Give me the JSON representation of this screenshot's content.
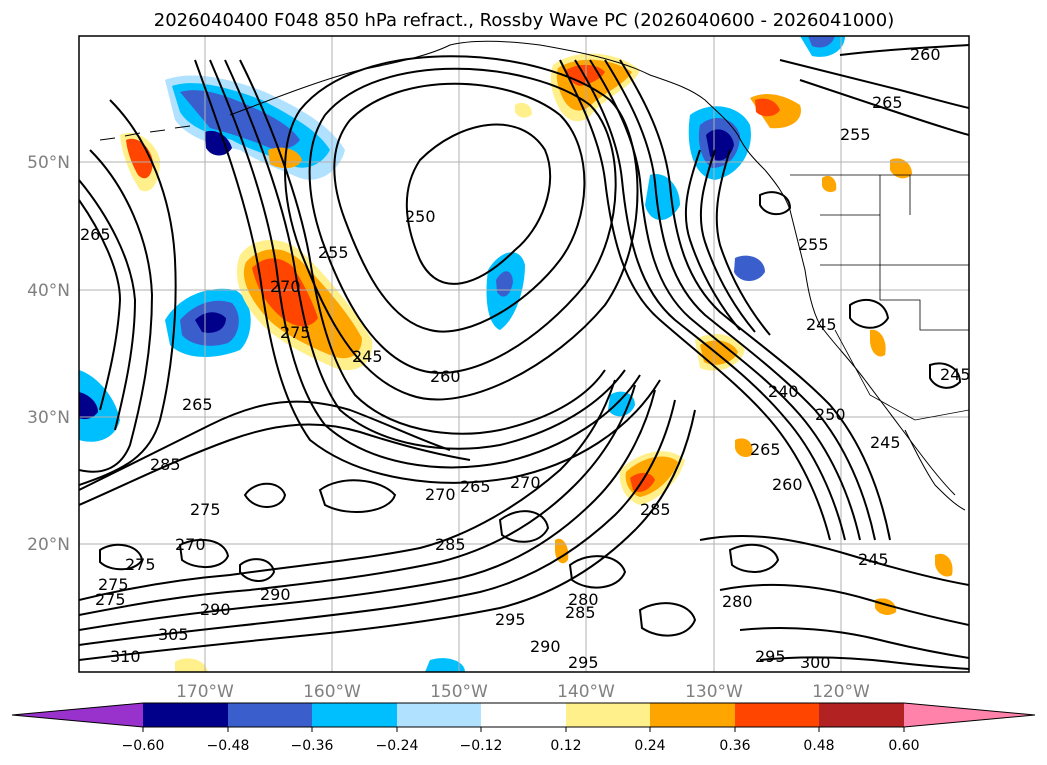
{
  "title": "2026040400 F048 850 hPa refract., Rossby Wave PC (2026040600 - 2026041000)",
  "lat_labels": [
    "50°N",
    "40°N",
    "30°N",
    "20°N"
  ],
  "lon_labels": [
    "170°W",
    "160°W",
    "150°W",
    "140°W",
    "130°W",
    "120°W"
  ],
  "colorbar": {
    "ticks": [
      "−0.60",
      "−0.48",
      "−0.36",
      "−0.24",
      "−0.12",
      "0.12",
      "0.24",
      "0.36",
      "0.48",
      "0.60"
    ],
    "colors": [
      "#9932cc",
      "#00008b",
      "#3a5fcd",
      "#00bfff",
      "#b0e2ff",
      "#ffffff",
      "#fff08c",
      "#ffa500",
      "#ff4500",
      "#b22222",
      "#ff82ab"
    ]
  },
  "contour_labels": [
    "260",
    "265",
    "255",
    "250",
    "255",
    "270",
    "275",
    "245",
    "260",
    "265",
    "270",
    "265",
    "270",
    "285",
    "285",
    "275",
    "270",
    "275",
    "290",
    "305",
    "310",
    "240",
    "250",
    "245",
    "265",
    "260",
    "280",
    "280",
    "285",
    "295",
    "290",
    "295",
    "245",
    "245",
    "245",
    "255",
    "265",
    "295",
    "300",
    "290",
    "285",
    "275",
    "275"
  ],
  "colors": {
    "coast": "#000000",
    "grid": "#b0b0b0"
  }
}
